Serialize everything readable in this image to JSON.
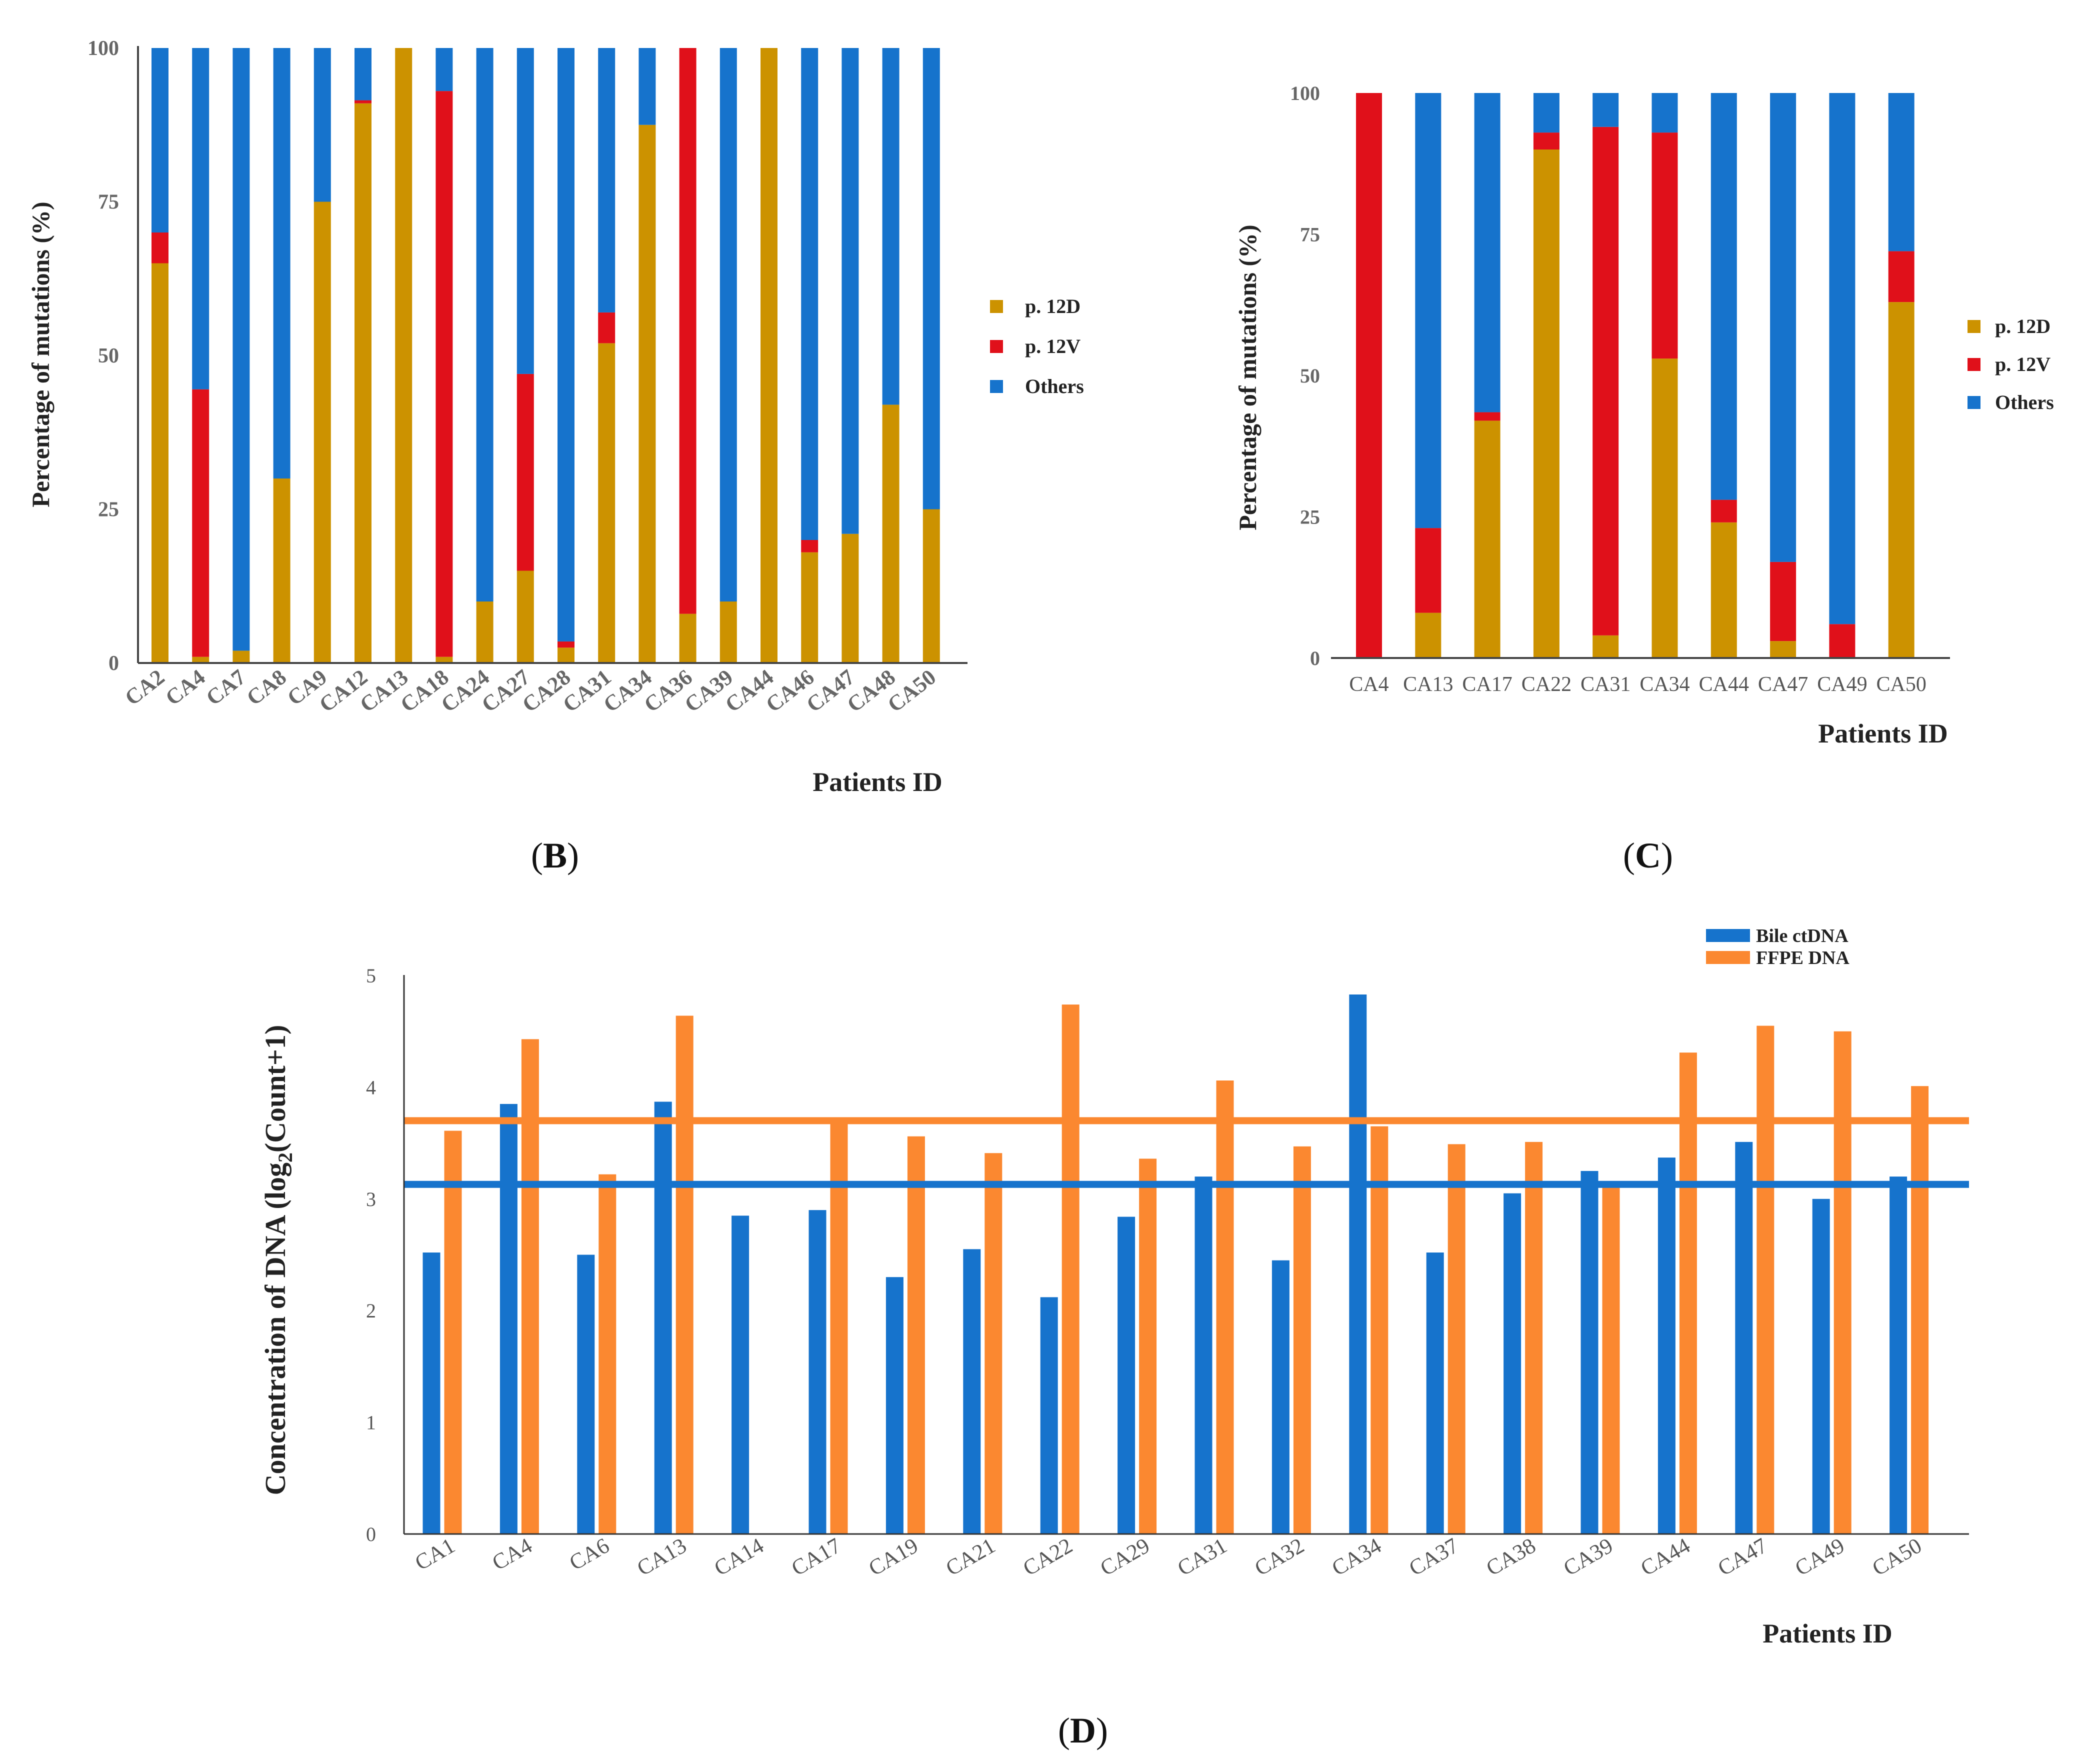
{
  "colors": {
    "p12D": "#cc9200",
    "p12V": "#e0101a",
    "others": "#1673cc",
    "bile": "#1673cc",
    "ffpe": "#fb8830",
    "axis": "#333333"
  },
  "chart_data": [
    {
      "panel": "B",
      "type": "bar",
      "stacked": true,
      "ylabel": "Percentage of mutations (%)",
      "xlabel": "Patients ID",
      "ylim": [
        0,
        100
      ],
      "yticks": [
        "0",
        "25",
        "50",
        "75",
        "100"
      ],
      "legend": {
        "placement": "right",
        "entries": [
          "p. 12D",
          "p. 12V",
          "Others"
        ]
      },
      "categories": [
        "CA2",
        "CA4",
        "CA7",
        "CA8",
        "CA9",
        "CA12",
        "CA13",
        "CA18",
        "CA24",
        "CA27",
        "CA28",
        "CA31",
        "CA34",
        "CA36",
        "CA39",
        "CA44",
        "CA46",
        "CA47",
        "CA48",
        "CA50"
      ],
      "series": [
        {
          "name": "p. 12D",
          "values": [
            65,
            1,
            2,
            30,
            75,
            91,
            100,
            1,
            10,
            15,
            2.5,
            52,
            87.5,
            8,
            10,
            100,
            18,
            21,
            42,
            25
          ]
        },
        {
          "name": "p. 12V",
          "values": [
            5,
            43.5,
            0,
            0,
            0,
            0.5,
            0,
            92,
            0,
            32,
            1,
            5,
            0,
            92,
            0,
            0,
            2,
            0,
            0,
            0
          ]
        },
        {
          "name": "Others",
          "values": [
            30,
            55.5,
            98,
            70,
            25,
            8.5,
            0,
            7,
            90,
            53,
            96.5,
            43,
            12.5,
            0,
            90,
            0,
            80,
            79,
            58,
            75
          ]
        }
      ]
    },
    {
      "panel": "C",
      "type": "bar",
      "stacked": true,
      "ylabel": "Percentage of mutations (%)",
      "xlabel": "Patients ID",
      "ylim": [
        0,
        100
      ],
      "yticks": [
        "0",
        "25",
        "50",
        "75",
        "100"
      ],
      "legend": {
        "placement": "right",
        "entries": [
          "p. 12D",
          "p. 12V",
          "Others"
        ]
      },
      "categories": [
        "CA4",
        "CA13",
        "CA17",
        "CA22",
        "CA31",
        "CA34",
        "CA44",
        "CA47",
        "CA49",
        "CA50"
      ],
      "series": [
        {
          "name": "p. 12D",
          "values": [
            0,
            8,
            42,
            90,
            4,
            53,
            24,
            3,
            0,
            63
          ]
        },
        {
          "name": "p. 12V",
          "values": [
            100,
            15,
            1.5,
            3,
            90,
            40,
            4,
            14,
            6,
            9
          ]
        },
        {
          "name": "Others",
          "values": [
            0,
            77,
            56.5,
            7,
            6,
            7,
            72,
            83,
            94,
            28
          ]
        }
      ]
    },
    {
      "panel": "D",
      "type": "bar",
      "stacked": false,
      "ylabel_main": "Concentration of DNA (log",
      "ylabel_sub": "2",
      "ylabel_end": "(Count+1)",
      "xlabel": "Patients ID",
      "ylim": [
        0,
        5
      ],
      "yticks": [
        "0",
        "1",
        "2",
        "3",
        "4",
        "5"
      ],
      "legend": {
        "placement": "top-right",
        "entries": [
          "Bile ctDNA",
          "FFPE DNA"
        ]
      },
      "categories": [
        "CA1",
        "CA4",
        "CA6",
        "CA13",
        "CA14",
        "CA17",
        "CA19",
        "CA21",
        "CA22",
        "CA29",
        "CA31",
        "CA32",
        "CA34",
        "CA37",
        "CA38",
        "CA39",
        "CA44",
        "CA47",
        "CA49",
        "CA50"
      ],
      "series": [
        {
          "name": "Bile ctDNA",
          "values": [
            2.52,
            3.85,
            2.5,
            3.87,
            2.85,
            2.9,
            2.3,
            2.55,
            2.12,
            2.84,
            3.2,
            2.45,
            4.83,
            2.52,
            3.05,
            3.25,
            3.37,
            3.51,
            3.0,
            3.2
          ]
        },
        {
          "name": "FFPE DNA",
          "values": [
            3.61,
            4.43,
            3.22,
            4.64,
            0,
            3.7,
            3.56,
            3.41,
            4.74,
            3.36,
            4.06,
            3.47,
            3.65,
            3.49,
            3.51,
            3.12,
            4.31,
            4.55,
            4.5,
            4.01
          ]
        }
      ],
      "reference_lines": [
        {
          "series": "Bile ctDNA",
          "value": 3.13
        },
        {
          "series": "FFPE DNA",
          "value": 3.7
        }
      ]
    }
  ],
  "panel_labels": {
    "b": "B",
    "c": "C",
    "d": "D"
  }
}
